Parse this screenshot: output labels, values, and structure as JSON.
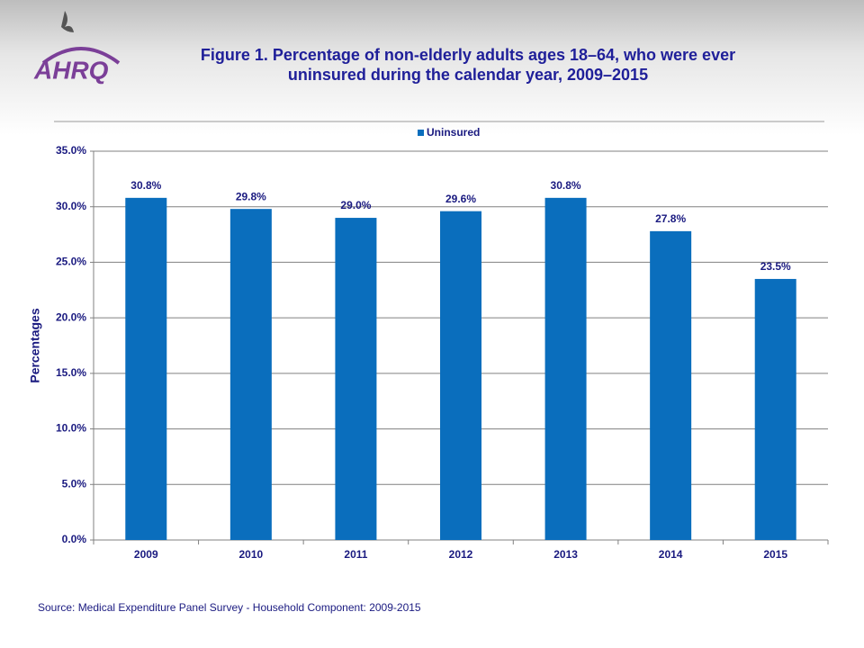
{
  "logo": "AHRQ",
  "chart_data": {
    "type": "bar",
    "title": "Figure 1. Percentage of non-elderly adults ages 18–64, who were ever uninsured during the calendar year, 2009–2015",
    "y_label": "Percentages",
    "source": "Source:  Medical Expenditure Panel Survey - Household Component: 2009-2015",
    "categories": [
      "2009",
      "2010",
      "2011",
      "2012",
      "2013",
      "2014",
      "2015"
    ],
    "series": [
      {
        "name": "Uninsured",
        "color": "#0a6ebd",
        "values": [
          30.8,
          29.8,
          29.0,
          29.6,
          30.8,
          27.8,
          23.5
        ],
        "value_labels": [
          "30.8%",
          "29.8%",
          "29.0%",
          "29.6%",
          "30.8%",
          "27.8%",
          "23.5%"
        ]
      }
    ],
    "ylim": [
      0,
      35
    ],
    "yticks": [
      {
        "value": 0,
        "label": "0.0%"
      },
      {
        "value": 5,
        "label": "5.0%"
      },
      {
        "value": 10,
        "label": "10.0%"
      },
      {
        "value": 15,
        "label": "15.0%"
      },
      {
        "value": 20,
        "label": "20.0%"
      },
      {
        "value": 25,
        "label": "25.0%"
      },
      {
        "value": 30,
        "label": "30.0%"
      },
      {
        "value": 35,
        "label": "35.0%"
      }
    ],
    "grid": true,
    "legend": "top"
  }
}
